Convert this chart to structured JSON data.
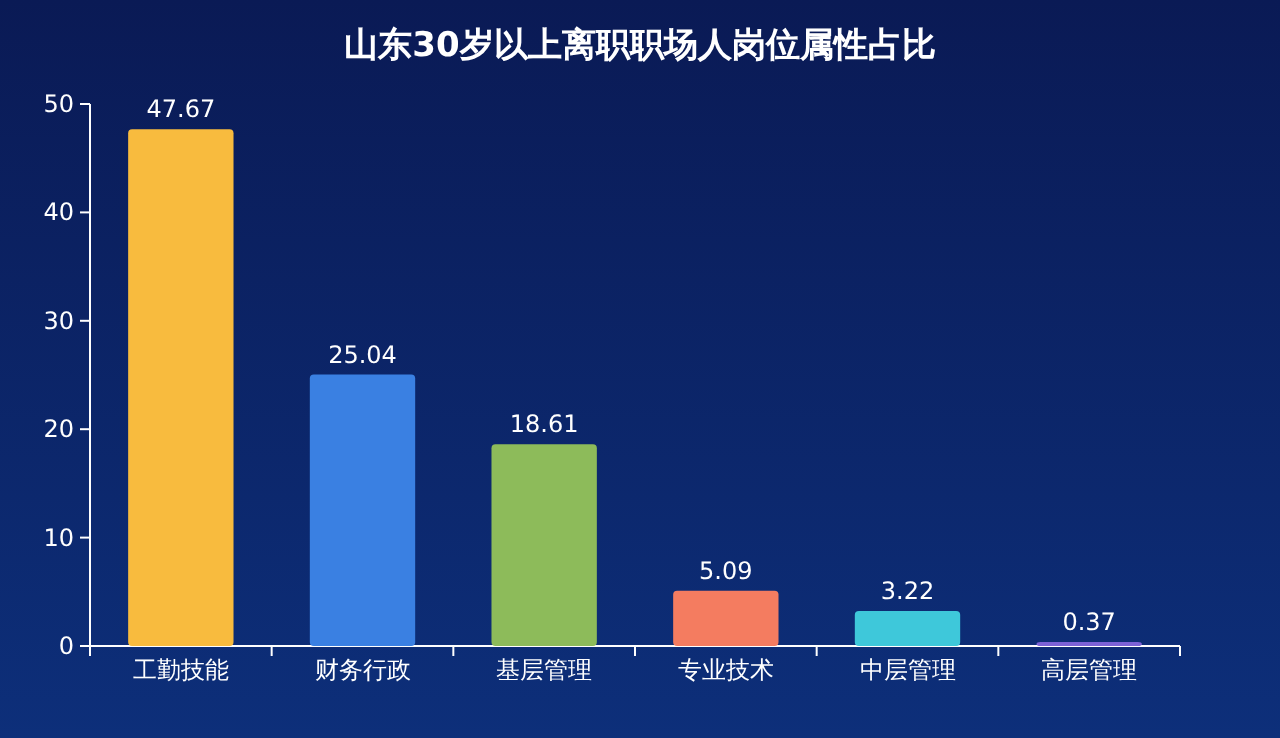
{
  "chart_data": {
    "type": "bar",
    "title": "山东30岁以上离职职场人岗位属性占比",
    "categories": [
      "工勤技能",
      "财务行政",
      "基层管理",
      "专业技术",
      "中层管理",
      "高层管理"
    ],
    "values": [
      47.67,
      25.04,
      18.61,
      5.09,
      3.22,
      0.37
    ],
    "colors": [
      "#f8bb3e",
      "#3a80e2",
      "#8dbb5a",
      "#f47c60",
      "#3ec8da",
      "#7c62d6"
    ],
    "ylim": [
      0,
      50
    ],
    "yticks": [
      0,
      10,
      20,
      30,
      40,
      50
    ],
    "data_labels": true,
    "grid": false
  }
}
